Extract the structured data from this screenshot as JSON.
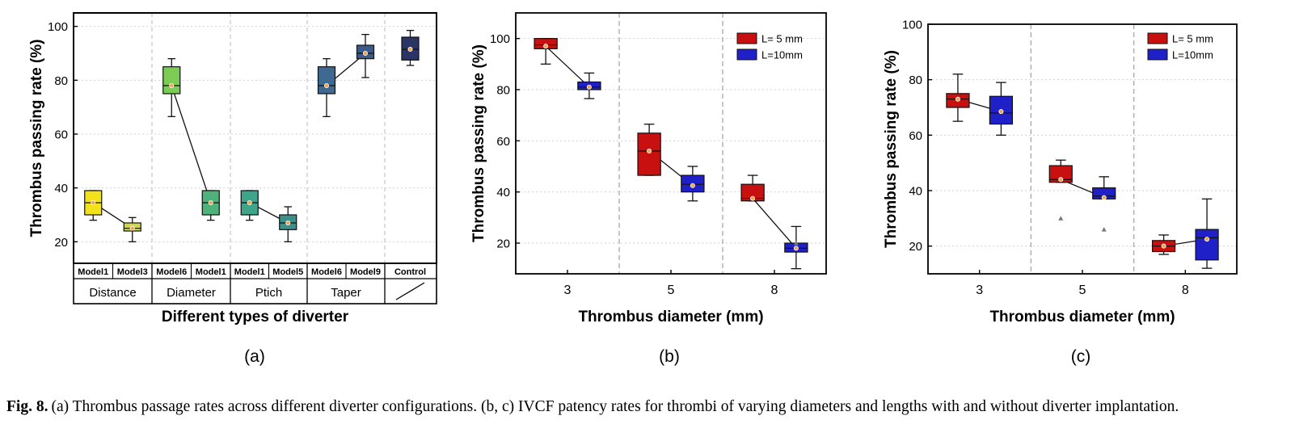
{
  "caption": {
    "label": "Fig. 8.",
    "text": "(a) Thrombus passage rates across different diverter configurations. (b, c) IVCF patency rates for thrombi of varying diameters and lengths with and without diverter implantation."
  },
  "chart_data": [
    {
      "panel_label": "(a)",
      "type": "box",
      "ylabel": "Thrombus passing rate (%)",
      "xlabel": "Different types of diverter",
      "ylim": [
        12,
        105
      ],
      "yticks": [
        20,
        40,
        60,
        80,
        100
      ],
      "grid": "horizontal dotted",
      "groups": [
        {
          "name": "Distance",
          "models": [
            "Model1",
            "Model3"
          ]
        },
        {
          "name": "Diameter",
          "models": [
            "Model6",
            "Model1"
          ]
        },
        {
          "name": "Ptich",
          "models": [
            "Model1",
            "Model5"
          ]
        },
        {
          "name": "Taper",
          "models": [
            "Model6",
            "Model9"
          ]
        },
        {
          "name": "Control",
          "models": [
            "Control"
          ]
        }
      ],
      "boxes": [
        {
          "category": "Model1",
          "group": "Distance",
          "color": "#f2e21c",
          "whisker_low": 28,
          "q1": 30,
          "median": 34.5,
          "q3": 39,
          "whisker_high": 39,
          "mean": 34.5
        },
        {
          "category": "Model3",
          "group": "Distance",
          "color": "#cfd84a",
          "whisker_low": 20,
          "q1": 24,
          "median": 25,
          "q3": 27,
          "whisker_high": 29,
          "mean": 25
        },
        {
          "category": "Model6",
          "group": "Diameter",
          "color": "#7ccb55",
          "whisker_low": 66.5,
          "q1": 75,
          "median": 78,
          "q3": 85,
          "whisker_high": 88,
          "mean": 78
        },
        {
          "category": "Model1",
          "group": "Diameter",
          "color": "#4fb27a",
          "whisker_low": 28,
          "q1": 30,
          "median": 34.5,
          "q3": 39,
          "whisker_high": 39,
          "mean": 34.5
        },
        {
          "category": "Model1",
          "group": "Ptich",
          "color": "#3ea58a",
          "whisker_low": 28,
          "q1": 30,
          "median": 34.5,
          "q3": 39,
          "whisker_high": 39,
          "mean": 34.5
        },
        {
          "category": "Model5",
          "group": "Ptich",
          "color": "#3d8f8c",
          "whisker_low": 20,
          "q1": 24.5,
          "median": 27,
          "q3": 30,
          "whisker_high": 33,
          "mean": 27
        },
        {
          "category": "Model6",
          "group": "Taper",
          "color": "#3e6990",
          "whisker_low": 66.5,
          "q1": 75,
          "median": 78,
          "q3": 85,
          "whisker_high": 88,
          "mean": 78
        },
        {
          "category": "Model9",
          "group": "Taper",
          "color": "#3b5a8a",
          "whisker_low": 81,
          "q1": 88,
          "median": 90,
          "q3": 93,
          "whisker_high": 97,
          "mean": 90
        },
        {
          "category": "Control",
          "group": "Control",
          "color": "#2a3566",
          "whisker_low": 85.5,
          "q1": 87.5,
          "median": 91.5,
          "q3": 96,
          "whisker_high": 98.5,
          "mean": 91.5
        }
      ],
      "mean_lines": [
        [
          "Distance",
          0,
          1
        ],
        [
          "Diameter",
          2,
          3
        ],
        [
          "Ptich",
          4,
          5
        ],
        [
          "Taper",
          6,
          7
        ]
      ]
    },
    {
      "panel_label": "(b)",
      "type": "box",
      "ylabel": "Thrombus passing rate (%)",
      "xlabel": "Thrombus diameter (mm)",
      "ylim": [
        8,
        110
      ],
      "yticks": [
        20,
        40,
        60,
        80,
        100
      ],
      "grid": "horizontal dotted",
      "legend_position": "top-right",
      "categories": [
        "3",
        "5",
        "8"
      ],
      "series": [
        {
          "name": "L= 5 mm",
          "color": "#c81010",
          "boxes": [
            {
              "whisker_low": 90,
              "q1": 96,
              "median": 97.5,
              "q3": 100,
              "whisker_high": 100,
              "mean": 97
            },
            {
              "whisker_low": 46.5,
              "q1": 46.5,
              "median": 56,
              "q3": 63,
              "whisker_high": 66.5,
              "mean": 56
            },
            {
              "whisker_low": 36.5,
              "q1": 36.5,
              "median": 37.5,
              "q3": 43,
              "whisker_high": 46.5,
              "mean": 37.5
            }
          ],
          "outliers": [
            [],
            [],
            []
          ]
        },
        {
          "name": "L=10mm",
          "color": "#2020c8",
          "boxes": [
            {
              "whisker_low": 76.5,
              "q1": 80,
              "median": 81,
              "q3": 83,
              "whisker_high": 86.5,
              "mean": 81
            },
            {
              "whisker_low": 36.5,
              "q1": 40,
              "median": 43,
              "q3": 46.5,
              "whisker_high": 50,
              "mean": 42.5
            },
            {
              "whisker_low": 10,
              "q1": 16.5,
              "median": 18,
              "q3": 20,
              "whisker_high": 26.5,
              "mean": 18
            }
          ],
          "outliers": [
            [],
            [],
            [
              20
            ]
          ]
        }
      ]
    },
    {
      "panel_label": "(c)",
      "type": "box",
      "ylabel": "Thrombus passing rate (%)",
      "xlabel": "Thrombus diameter (mm)",
      "ylim": [
        10,
        100
      ],
      "yticks": [
        20,
        40,
        60,
        80,
        100
      ],
      "grid": "horizontal dotted",
      "legend_position": "top-right",
      "categories": [
        "3",
        "5",
        "8"
      ],
      "series": [
        {
          "name": "L= 5 mm",
          "color": "#c81010",
          "boxes": [
            {
              "whisker_low": 65,
              "q1": 70,
              "median": 73,
              "q3": 75,
              "whisker_high": 82,
              "mean": 73
            },
            {
              "whisker_low": 43,
              "q1": 43,
              "median": 44,
              "q3": 49,
              "whisker_high": 51,
              "mean": 44
            },
            {
              "whisker_low": 17,
              "q1": 18,
              "median": 20,
              "q3": 22,
              "whisker_high": 24,
              "mean": 20
            }
          ],
          "outliers": [
            [],
            [
              30
            ],
            []
          ]
        },
        {
          "name": "L=10mm",
          "color": "#2020c8",
          "boxes": [
            {
              "whisker_low": 60,
              "q1": 64,
              "median": 68,
              "q3": 74,
              "whisker_high": 79,
              "mean": 68.5
            },
            {
              "whisker_low": 37,
              "q1": 37,
              "median": 38,
              "q3": 41,
              "whisker_high": 45,
              "mean": 37.5
            },
            {
              "whisker_low": 12,
              "q1": 15,
              "median": 23,
              "q3": 26,
              "whisker_high": 37,
              "mean": 22.5
            }
          ],
          "outliers": [
            [],
            [
              26
            ],
            []
          ]
        }
      ]
    }
  ]
}
